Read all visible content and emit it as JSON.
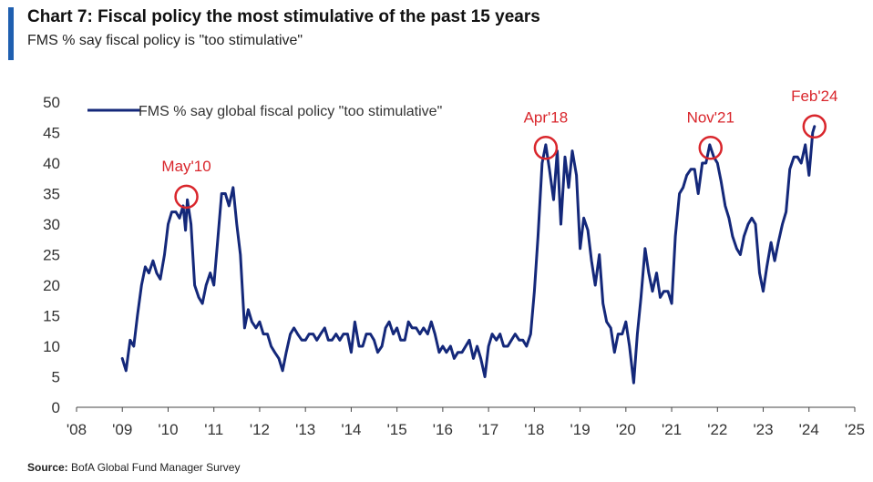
{
  "header": {
    "title": "Chart 7: Fiscal policy the most stimulative of the past 15 years",
    "subtitle": "FMS % say fiscal policy is \"too stimulative\""
  },
  "source": {
    "label": "Source:",
    "text": "BofA Global Fund Manager Survey"
  },
  "chart_data": {
    "type": "line",
    "ylim": [
      0,
      50
    ],
    "yticks": [
      0,
      5,
      10,
      15,
      20,
      25,
      30,
      35,
      40,
      45,
      50
    ],
    "xlim": [
      2008,
      2025
    ],
    "xticks": [
      {
        "value": 2008,
        "label": "'08"
      },
      {
        "value": 2009,
        "label": "'09"
      },
      {
        "value": 2010,
        "label": "'10"
      },
      {
        "value": 2011,
        "label": "'11"
      },
      {
        "value": 2012,
        "label": "'12"
      },
      {
        "value": 2013,
        "label": "'13"
      },
      {
        "value": 2014,
        "label": "'14"
      },
      {
        "value": 2015,
        "label": "'15"
      },
      {
        "value": 2016,
        "label": "'16"
      },
      {
        "value": 2017,
        "label": "'17"
      },
      {
        "value": 2018,
        "label": "'18"
      },
      {
        "value": 2019,
        "label": "'19"
      },
      {
        "value": 2020,
        "label": "'20"
      },
      {
        "value": 2021,
        "label": "'21"
      },
      {
        "value": 2022,
        "label": "'22"
      },
      {
        "value": 2023,
        "label": "'23"
      },
      {
        "value": 2024,
        "label": "'24"
      },
      {
        "value": 2025,
        "label": "'25"
      }
    ],
    "legend": {
      "label": "FMS % say global fiscal policy \"too stimulative\"",
      "placement": "top-left"
    },
    "series": [
      {
        "name": "FMS % say global fiscal policy \"too stimulative\"",
        "color": "#14287a",
        "points": [
          [
            2009.0,
            8
          ],
          [
            2009.08,
            6
          ],
          [
            2009.17,
            11
          ],
          [
            2009.25,
            10
          ],
          [
            2009.33,
            15
          ],
          [
            2009.42,
            20
          ],
          [
            2009.5,
            23
          ],
          [
            2009.58,
            22
          ],
          [
            2009.67,
            24
          ],
          [
            2009.75,
            22
          ],
          [
            2009.83,
            21
          ],
          [
            2009.92,
            25
          ],
          [
            2010.0,
            30
          ],
          [
            2010.08,
            32
          ],
          [
            2010.17,
            32
          ],
          [
            2010.25,
            31
          ],
          [
            2010.33,
            33
          ],
          [
            2010.38,
            29
          ],
          [
            2010.42,
            34
          ],
          [
            2010.5,
            30
          ],
          [
            2010.58,
            20
          ],
          [
            2010.67,
            18
          ],
          [
            2010.75,
            17
          ],
          [
            2010.83,
            20
          ],
          [
            2010.92,
            22
          ],
          [
            2011.0,
            20
          ],
          [
            2011.08,
            27
          ],
          [
            2011.17,
            35
          ],
          [
            2011.25,
            35
          ],
          [
            2011.33,
            33
          ],
          [
            2011.42,
            36
          ],
          [
            2011.5,
            30
          ],
          [
            2011.58,
            25
          ],
          [
            2011.67,
            13
          ],
          [
            2011.75,
            16
          ],
          [
            2011.83,
            14
          ],
          [
            2011.92,
            13
          ],
          [
            2012.0,
            14
          ],
          [
            2012.08,
            12
          ],
          [
            2012.17,
            12
          ],
          [
            2012.25,
            10
          ],
          [
            2012.33,
            9
          ],
          [
            2012.42,
            8
          ],
          [
            2012.5,
            6
          ],
          [
            2012.58,
            9
          ],
          [
            2012.67,
            12
          ],
          [
            2012.75,
            13
          ],
          [
            2012.83,
            12
          ],
          [
            2012.92,
            11
          ],
          [
            2013.0,
            11
          ],
          [
            2013.08,
            12
          ],
          [
            2013.17,
            12
          ],
          [
            2013.25,
            11
          ],
          [
            2013.33,
            12
          ],
          [
            2013.42,
            13
          ],
          [
            2013.5,
            11
          ],
          [
            2013.58,
            11
          ],
          [
            2013.67,
            12
          ],
          [
            2013.75,
            11
          ],
          [
            2013.83,
            12
          ],
          [
            2013.92,
            12
          ],
          [
            2014.0,
            9
          ],
          [
            2014.08,
            14
          ],
          [
            2014.17,
            10
          ],
          [
            2014.25,
            10
          ],
          [
            2014.33,
            12
          ],
          [
            2014.42,
            12
          ],
          [
            2014.5,
            11
          ],
          [
            2014.58,
            9
          ],
          [
            2014.67,
            10
          ],
          [
            2014.75,
            13
          ],
          [
            2014.83,
            14
          ],
          [
            2014.92,
            12
          ],
          [
            2015.0,
            13
          ],
          [
            2015.08,
            11
          ],
          [
            2015.17,
            11
          ],
          [
            2015.25,
            14
          ],
          [
            2015.33,
            13
          ],
          [
            2015.42,
            13
          ],
          [
            2015.5,
            12
          ],
          [
            2015.58,
            13
          ],
          [
            2015.67,
            12
          ],
          [
            2015.75,
            14
          ],
          [
            2015.83,
            12
          ],
          [
            2015.92,
            9
          ],
          [
            2016.0,
            10
          ],
          [
            2016.08,
            9
          ],
          [
            2016.17,
            10
          ],
          [
            2016.25,
            8
          ],
          [
            2016.33,
            9
          ],
          [
            2016.42,
            9
          ],
          [
            2016.5,
            10
          ],
          [
            2016.58,
            11
          ],
          [
            2016.67,
            8
          ],
          [
            2016.75,
            10
          ],
          [
            2016.83,
            8
          ],
          [
            2016.92,
            5
          ],
          [
            2017.0,
            10
          ],
          [
            2017.08,
            12
          ],
          [
            2017.17,
            11
          ],
          [
            2017.25,
            12
          ],
          [
            2017.33,
            10
          ],
          [
            2017.42,
            10
          ],
          [
            2017.5,
            11
          ],
          [
            2017.58,
            12
          ],
          [
            2017.67,
            11
          ],
          [
            2017.75,
            11
          ],
          [
            2017.83,
            10
          ],
          [
            2017.92,
            12
          ],
          [
            2018.0,
            19
          ],
          [
            2018.08,
            28
          ],
          [
            2018.17,
            40
          ],
          [
            2018.25,
            43
          ],
          [
            2018.33,
            39
          ],
          [
            2018.42,
            34
          ],
          [
            2018.5,
            42
          ],
          [
            2018.58,
            30
          ],
          [
            2018.67,
            41
          ],
          [
            2018.75,
            36
          ],
          [
            2018.83,
            42
          ],
          [
            2018.92,
            38
          ],
          [
            2019.0,
            26
          ],
          [
            2019.08,
            31
          ],
          [
            2019.17,
            29
          ],
          [
            2019.25,
            24
          ],
          [
            2019.33,
            20
          ],
          [
            2019.42,
            25
          ],
          [
            2019.5,
            17
          ],
          [
            2019.58,
            14
          ],
          [
            2019.67,
            13
          ],
          [
            2019.75,
            9
          ],
          [
            2019.83,
            12
          ],
          [
            2019.92,
            12
          ],
          [
            2020.0,
            14
          ],
          [
            2020.08,
            10
          ],
          [
            2020.17,
            4
          ],
          [
            2020.25,
            12
          ],
          [
            2020.33,
            18
          ],
          [
            2020.42,
            26
          ],
          [
            2020.5,
            22
          ],
          [
            2020.58,
            19
          ],
          [
            2020.67,
            22
          ],
          [
            2020.75,
            18
          ],
          [
            2020.83,
            19
          ],
          [
            2020.92,
            19
          ],
          [
            2021.0,
            17
          ],
          [
            2021.08,
            28
          ],
          [
            2021.17,
            35
          ],
          [
            2021.25,
            36
          ],
          [
            2021.33,
            38
          ],
          [
            2021.42,
            39
          ],
          [
            2021.5,
            39
          ],
          [
            2021.58,
            35
          ],
          [
            2021.67,
            40
          ],
          [
            2021.75,
            40
          ],
          [
            2021.83,
            43
          ],
          [
            2021.92,
            41
          ],
          [
            2022.0,
            40
          ],
          [
            2022.08,
            37
          ],
          [
            2022.17,
            33
          ],
          [
            2022.25,
            31
          ],
          [
            2022.33,
            28
          ],
          [
            2022.42,
            26
          ],
          [
            2022.5,
            25
          ],
          [
            2022.58,
            28
          ],
          [
            2022.67,
            30
          ],
          [
            2022.75,
            31
          ],
          [
            2022.83,
            30
          ],
          [
            2022.92,
            22
          ],
          [
            2023.0,
            19
          ],
          [
            2023.08,
            23
          ],
          [
            2023.17,
            27
          ],
          [
            2023.25,
            24
          ],
          [
            2023.33,
            27
          ],
          [
            2023.42,
            30
          ],
          [
            2023.5,
            32
          ],
          [
            2023.58,
            39
          ],
          [
            2023.67,
            41
          ],
          [
            2023.75,
            41
          ],
          [
            2023.83,
            40
          ],
          [
            2023.92,
            43
          ],
          [
            2024.0,
            38
          ],
          [
            2024.08,
            45
          ],
          [
            2024.12,
            46
          ]
        ]
      }
    ],
    "annotations": [
      {
        "label": "May'10",
        "x": 2010.4,
        "y": 34.5
      },
      {
        "label": "Apr'18",
        "x": 2018.25,
        "y": 42.5
      },
      {
        "label": "Nov'21",
        "x": 2021.85,
        "y": 42.5
      },
      {
        "label": "Feb'24",
        "x": 2024.12,
        "y": 46
      }
    ],
    "annotation_color": "#d9262c",
    "grid": false
  }
}
